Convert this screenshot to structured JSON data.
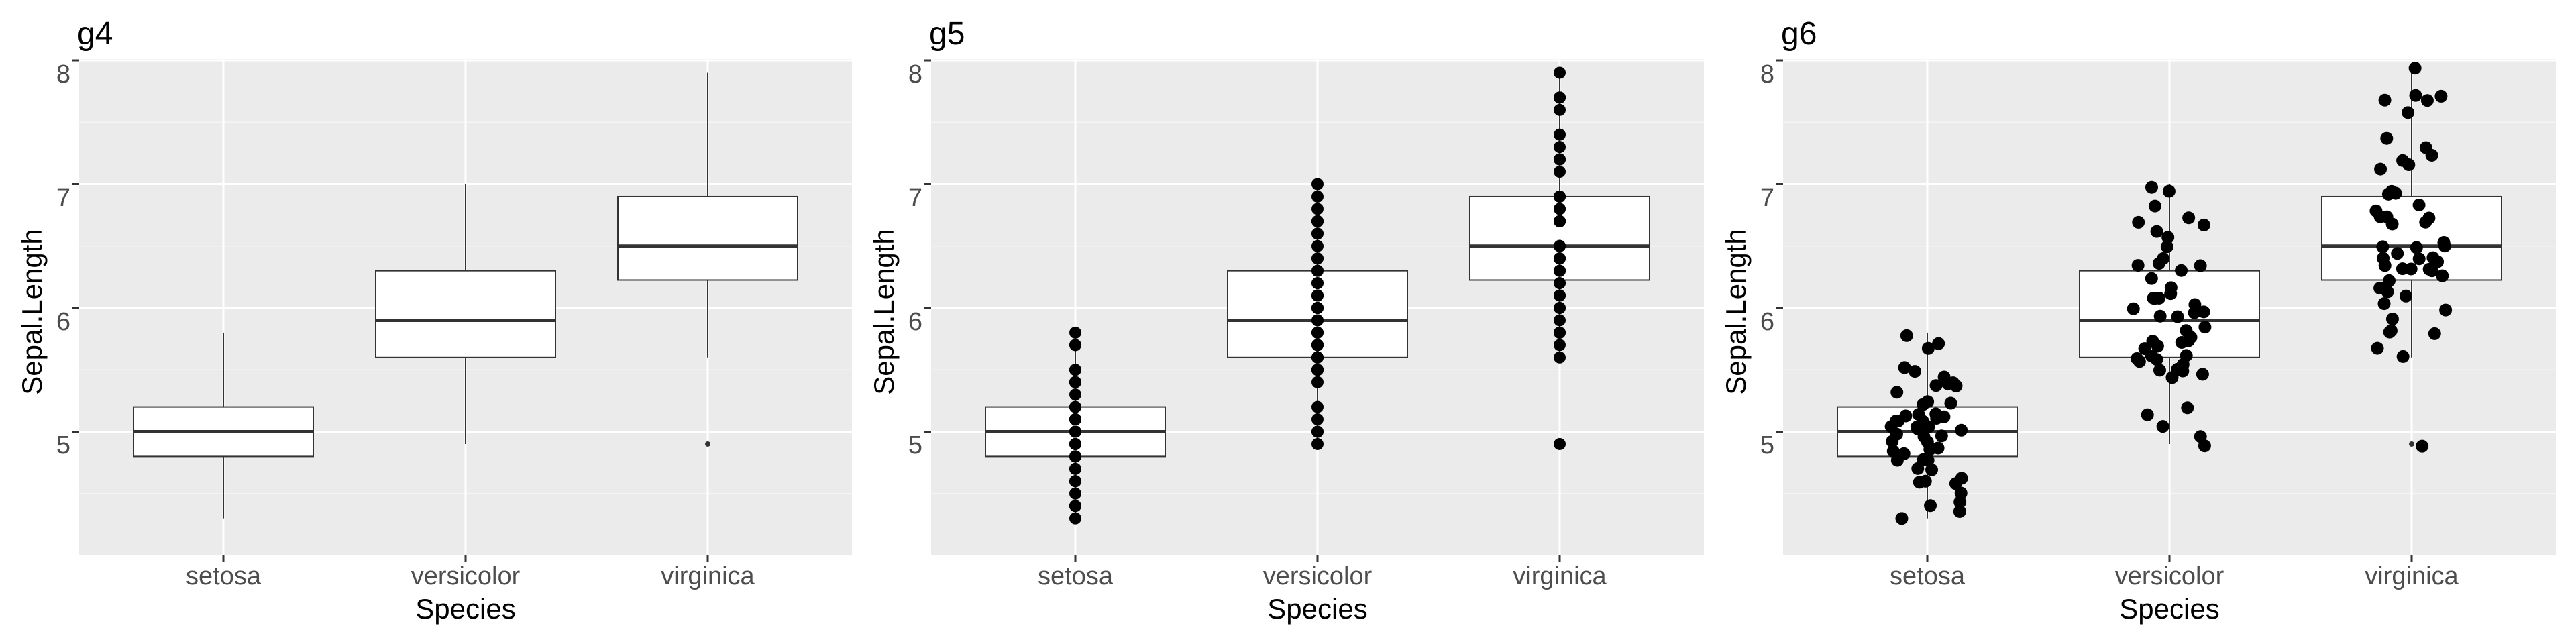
{
  "colors": {
    "panel_background": "#ebebeb",
    "grid_major": "#ffffff",
    "grid_minor": "#f5f5f5",
    "box_fill": "#ffffff",
    "box_line": "#333333",
    "points": "#000000",
    "tick_text": "#4d4d4d",
    "tick_mark": "#333333"
  },
  "chart_data": [
    {
      "id": "g4",
      "title": "g4",
      "type": "boxplot",
      "xlabel": "Species",
      "ylabel": "Sepal.Length",
      "categories": [
        "setosa",
        "versicolor",
        "virginica"
      ],
      "yticks": [
        "5",
        "6",
        "7",
        "8"
      ],
      "ylim": [
        4.2,
        8.0
      ],
      "grid": true,
      "boxes": [
        {
          "category": "setosa",
          "whisker_low": 4.3,
          "q1": 4.8,
          "median": 5.0,
          "q3": 5.2,
          "whisker_high": 5.8,
          "outliers": []
        },
        {
          "category": "versicolor",
          "whisker_low": 4.9,
          "q1": 5.6,
          "median": 5.9,
          "q3": 6.3,
          "whisker_high": 7.0,
          "outliers": []
        },
        {
          "category": "virginica",
          "whisker_low": 5.6,
          "q1": 6.225,
          "median": 6.5,
          "q3": 6.9,
          "whisker_high": 7.9,
          "outliers": [
            4.9
          ]
        }
      ],
      "points": "none"
    },
    {
      "id": "g5",
      "title": "g5",
      "type": "boxplot",
      "xlabel": "Species",
      "ylabel": "Sepal.Length",
      "categories": [
        "setosa",
        "versicolor",
        "virginica"
      ],
      "yticks": [
        "5",
        "6",
        "7",
        "8"
      ],
      "ylim": [
        4.2,
        8.0
      ],
      "grid": true,
      "boxes": [
        {
          "category": "setosa",
          "whisker_low": 4.3,
          "q1": 4.8,
          "median": 5.0,
          "q3": 5.2,
          "whisker_high": 5.8,
          "outliers": []
        },
        {
          "category": "versicolor",
          "whisker_low": 4.9,
          "q1": 5.6,
          "median": 5.9,
          "q3": 6.3,
          "whisker_high": 7.0,
          "outliers": []
        },
        {
          "category": "virginica",
          "whisker_low": 5.6,
          "q1": 6.225,
          "median": 6.5,
          "q3": 6.9,
          "whisker_high": 7.9,
          "outliers": [
            4.9
          ]
        }
      ],
      "points": "aligned"
    },
    {
      "id": "g6",
      "title": "g6",
      "type": "boxplot",
      "xlabel": "Species",
      "ylabel": "Sepal.Length",
      "categories": [
        "setosa",
        "versicolor",
        "virginica"
      ],
      "yticks": [
        "5",
        "6",
        "7",
        "8"
      ],
      "ylim": [
        4.2,
        8.0
      ],
      "grid": true,
      "boxes": [
        {
          "category": "setosa",
          "whisker_low": 4.3,
          "q1": 4.8,
          "median": 5.0,
          "q3": 5.2,
          "whisker_high": 5.8,
          "outliers": []
        },
        {
          "category": "versicolor",
          "whisker_low": 4.9,
          "q1": 5.6,
          "median": 5.9,
          "q3": 6.3,
          "whisker_high": 7.0,
          "outliers": []
        },
        {
          "category": "virginica",
          "whisker_low": 5.6,
          "q1": 6.225,
          "median": 6.5,
          "q3": 6.9,
          "whisker_high": 7.9,
          "outliers": [
            4.9
          ]
        }
      ],
      "points": "jitter"
    }
  ],
  "iris_sepal_length": {
    "setosa": [
      5.1,
      4.9,
      4.7,
      4.6,
      5.0,
      5.4,
      4.6,
      5.0,
      4.4,
      4.9,
      5.4,
      4.8,
      4.8,
      4.3,
      5.8,
      5.7,
      5.4,
      5.1,
      5.7,
      5.1,
      5.4,
      5.1,
      4.6,
      5.1,
      4.8,
      5.0,
      5.0,
      5.2,
      5.2,
      4.7,
      4.8,
      5.4,
      5.2,
      5.5,
      4.9,
      5.0,
      5.5,
      4.9,
      4.4,
      5.1,
      5.0,
      4.5,
      4.4,
      5.0,
      5.1,
      4.8,
      5.1,
      4.6,
      5.3,
      5.0
    ],
    "versicolor": [
      7.0,
      6.4,
      6.9,
      5.5,
      6.5,
      5.7,
      6.3,
      4.9,
      6.6,
      5.2,
      5.0,
      5.9,
      6.0,
      6.1,
      5.6,
      6.7,
      5.6,
      5.8,
      6.2,
      5.6,
      5.9,
      6.1,
      6.3,
      6.1,
      6.4,
      6.6,
      6.8,
      6.7,
      6.0,
      5.7,
      5.5,
      5.5,
      5.8,
      6.0,
      5.4,
      6.0,
      6.7,
      6.3,
      5.6,
      5.5,
      5.5,
      6.1,
      5.8,
      5.0,
      5.6,
      5.7,
      5.7,
      6.2,
      5.1,
      5.7
    ],
    "virginica": [
      6.3,
      5.8,
      7.1,
      6.3,
      6.5,
      7.6,
      4.9,
      7.3,
      6.7,
      7.2,
      6.5,
      6.4,
      6.8,
      5.7,
      5.8,
      6.4,
      6.5,
      7.7,
      7.7,
      6.0,
      6.9,
      5.6,
      7.7,
      6.3,
      6.7,
      7.2,
      6.2,
      6.1,
      6.4,
      7.2,
      7.4,
      7.9,
      6.4,
      6.3,
      6.1,
      7.7,
      6.3,
      6.4,
      6.0,
      6.9,
      6.7,
      6.9,
      5.8,
      6.8,
      6.7,
      6.7,
      6.3,
      6.5,
      6.2,
      5.9
    ]
  }
}
